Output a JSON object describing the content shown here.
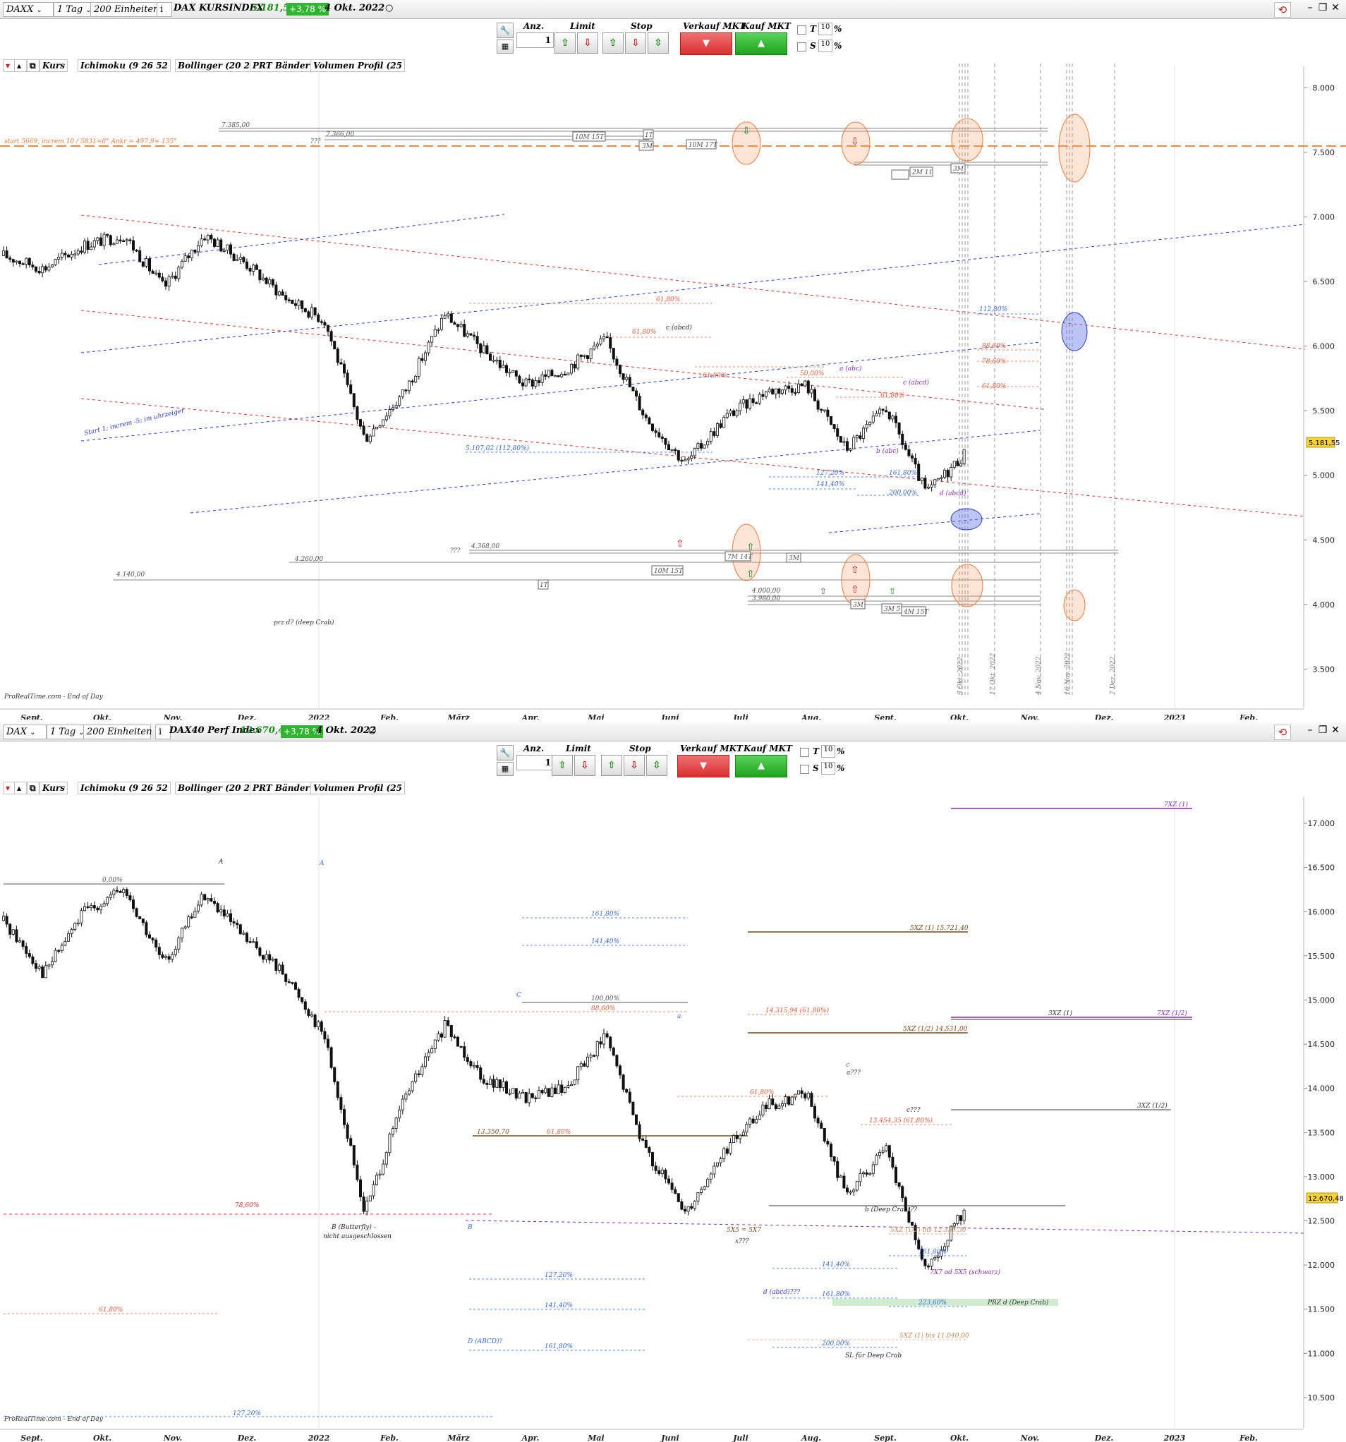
{
  "top": {
    "toolbar": {
      "symbol": "DAXX",
      "interval": "1 Tag",
      "units": "200 Einheiten",
      "name": "DAX KURSINDEX",
      "last": "5.181,55",
      "change": "+3,78 %",
      "date": "4 Okt. 2022"
    },
    "order": {
      "anz_label": "Anz.",
      "anz_value": "1",
      "limit_label": "Limit",
      "stop_label": "Stop",
      "sell_label": "Verkauf MKT",
      "buy_label": "Kauf MKT",
      "t_label": "T",
      "t_value": "10",
      "s_label": "S",
      "s_value": "10",
      "pct": "%"
    },
    "indicators": [
      "Kurs",
      "Ichimoku (9 26 52",
      "Bollinger (20 2",
      "PRT Bänder",
      "Volumen Profil (25"
    ],
    "watermark": "ProRealTime.com - End of Day",
    "price_tag": "5.181,55",
    "texts": {
      "start_line": "start 5669, increm 10 / 5831=0° Ankr = 497.9= 135°",
      "channel_label": "Start 1; increm -5; im uhrzeiger",
      "prz": "prz d? (deep Crab)",
      "l7385": "7.385,00",
      "l7366": "7.366,00",
      "l4260": "4.260,00",
      "l4140": "4.140,00",
      "l4368": "4.368,00",
      "l4000": "4.000,00",
      "l3980": "3.980,00",
      "q1": "???",
      "q2": "???",
      "fib_5107": "5.107,02 (112,80%)",
      "fib_11280": "112,80%",
      "fib_8860": "88,60%",
      "fib_7860": "78,60%",
      "fib_6180a": "61,80%",
      "fib_6180b": "61,80%",
      "fib_6180c": "61,80%",
      "fib_6180d": "61,80%",
      "fib_6180e": "61,80%",
      "fib_5000": "50,00%",
      "fib_12720": "127,20%",
      "fib_14140": "141,40%",
      "fib_16180": "161,80%",
      "fib_20000": "200,00%",
      "lbl_c1": "c (abcd)",
      "lbl_c2": "c (abcd)",
      "lbl_a": "a (abc)",
      "lbl_b": "b (abc)",
      "lbl_d": "d (abcd)",
      "box_10M15T": "10M 15T",
      "box_10M17T": "10M 17T",
      "box_1T": "1T",
      "box_3M": "3M",
      "box_2M11": "2M 11",
      "box_3M1": "3M",
      "box_7M14T": "7M 14T",
      "box_3M2": "3M",
      "box_10M15T2": "10M 15T",
      "box_1T2": "1T",
      "box_3M3": "3M",
      "box_3M5": "3M 5",
      "box_4M15T": "4M 15T",
      "vdates": [
        "3 Okt. 2022",
        "17 Okt. 2022",
        "4 Nov. 2022",
        "16 Nov. 2022",
        "7 Dez. 2022"
      ]
    }
  },
  "bottom": {
    "toolbar": {
      "symbol": "DAX",
      "interval": "1 Tag",
      "units": "200 Einheiten",
      "name": "DAX40 Perf Index",
      "last": "12.670,48",
      "change": "+3,78 %",
      "date": "4 Okt. 2022"
    },
    "order": {
      "anz_label": "Anz.",
      "anz_value": "1",
      "limit_label": "Limit",
      "stop_label": "Stop",
      "sell_label": "Verkauf MKT",
      "buy_label": "Kauf MKT",
      "t_label": "T",
      "t_value": "10",
      "s_label": "S",
      "s_value": "10",
      "pct": "%"
    },
    "indicators": [
      "Kurs",
      "Ichimoku (9 26 52",
      "Bollinger (20 2",
      "PRT Bänder",
      "Volumen Profil (25"
    ],
    "watermark": "ProRealTime.com - End of Day",
    "price_tag": "12.670,48",
    "texts": {
      "A1": "A",
      "A2": "A",
      "C": "C",
      "B": "B",
      "a_small": "a",
      "c_small": "c",
      "a3": "a???",
      "c3": "c???",
      "x3": "x???",
      "p0000": "0,00%",
      "p16180": "161,80%",
      "p14140": "141,40%",
      "p10000": "100,00%",
      "p8860": "88,60%",
      "p13350": "13.350,70",
      "p6180a": "61,80%",
      "p7860": "78,60%",
      "p6180b": "61,80%",
      "p14315": "14.315,94 (61,80%)",
      "p6180c": "61,80%",
      "p13454": "13.454,35 (61,80%)",
      "p16180b": "161,80%",
      "p12720": "127,20%",
      "p14140b": "141,40%",
      "p16180c": "161,80%",
      "p14140c": "141,40%",
      "p16180d": "161,80%",
      "p22360": "223,60%",
      "p20000": "200,00%",
      "p12720b": "127,20%",
      "butterfly1": "B (Butterfly) -",
      "butterfly2": "nicht ausgeschlossen",
      "abcd": "D (ABCD)?",
      "deepcrab_b": "b (Deep Crab)??",
      "sx5": "5X5 = 5X7",
      "d_abcd": "d (abcd)???",
      "prz": "PRZ d (Deep Crab)",
      "sl": "SL für Deep Crab",
      "sxz1": "5XZ (1) 15.721,40",
      "sxz12": "5XZ (1/2) 14.531,00",
      "sxz_half_low": "5XZ (1/2) bis 12.336,30",
      "sxz_low": "5XZ (1) bis 11.040,00",
      "x7x1": "7XZ (1)",
      "x7x12": "7XZ (1/2)",
      "x3x1": "3XZ (1)",
      "x3x12": "3XZ (1/2)",
      "x7or5": "7X7 od 5X5 (schwarz)"
    }
  },
  "x_labels": [
    "Sept.",
    "Okt.",
    "Nov.",
    "Dez.",
    "2022",
    "Feb.",
    "März",
    "Apr.",
    "Mai",
    "Juni",
    "Juli",
    "Aug.",
    "Sept.",
    "Okt.",
    "Nov.",
    "Dez.",
    "2023",
    "Feb."
  ],
  "chart_data": [
    {
      "type": "candlestick",
      "title": "DAX KURSINDEX",
      "y_ticks": [
        "8.000",
        "7.500",
        "7.000",
        "6.500",
        "6.000",
        "5.500",
        "5.000",
        "4.500",
        "4.000",
        "3.500"
      ],
      "ylim": [
        3300,
        8100
      ],
      "x_range": [
        "Aug. 2021",
        "Feb. 2023"
      ],
      "close_path": [
        [
          "Sept. 2021",
          6700
        ],
        [
          "Okt. 2021",
          6600
        ],
        [
          "Nov. 2021",
          6780
        ],
        [
          "Nov. 2021 end",
          6860
        ],
        [
          "Dez. 2021",
          6450
        ],
        [
          "2022",
          6860
        ],
        [
          "Jan. 2022",
          6650
        ],
        [
          "Feb. 2022",
          6380
        ],
        [
          "Feb. 2022 end",
          6200
        ],
        [
          "März 2022",
          5280
        ],
        [
          "März 2022 mid",
          5650
        ],
        [
          "Apr. 2022",
          6250
        ],
        [
          "Apr. 2022 mid",
          5950
        ],
        [
          "Mai 2022",
          5700
        ],
        [
          "Mai 2022 mid",
          5820
        ],
        [
          "Juni 2022",
          6050
        ],
        [
          "Juni 2022 mid",
          5450
        ],
        [
          "Juli 2022",
          5090
        ],
        [
          "Juli 2022 mid",
          5450
        ],
        [
          "Aug. 2022",
          5650
        ],
        [
          "Aug. 2022 mid",
          5700
        ],
        [
          "Sept. 2022",
          5200
        ],
        [
          "Sept. 2022 mid",
          5520
        ],
        [
          "Sept. 2022 end",
          4860
        ],
        [
          "Okt. 2022",
          5181.55
        ]
      ],
      "last_price": 5181.55
    },
    {
      "type": "candlestick",
      "title": "DAX40 Perf Index",
      "y_ticks": [
        "17.000",
        "16.500",
        "16.000",
        "15.500",
        "15.000",
        "14.500",
        "14.000",
        "13.500",
        "13.000",
        "12.500",
        "12.000",
        "11.500",
        "11.000",
        "10.500"
      ],
      "ylim": [
        10300,
        17200
      ],
      "x_range": [
        "Aug. 2021",
        "Feb. 2023"
      ],
      "close_path": [
        [
          "Sept. 2021",
          15900
        ],
        [
          "Okt. 2021",
          15300
        ],
        [
          "Nov. 2021",
          16000
        ],
        [
          "Nov. 2021 end",
          16250
        ],
        [
          "Dez. 2021",
          15400
        ],
        [
          "2022",
          16200
        ],
        [
          "Jan. 2022",
          15700
        ],
        [
          "Feb. 2022",
          15300
        ],
        [
          "Feb. 2022 end",
          14600
        ],
        [
          "März 2022",
          12600
        ],
        [
          "März 2022 mid",
          13900
        ],
        [
          "Apr. 2022",
          14700
        ],
        [
          "Apr. 2022 mid",
          14100
        ],
        [
          "Mai 2022",
          13900
        ],
        [
          "Mai 2022 mid",
          14000
        ],
        [
          "Juni 2022",
          14600
        ],
        [
          "Juni 2022 mid",
          13300
        ],
        [
          "Juli 2022",
          12600
        ],
        [
          "Juli 2022 mid",
          13300
        ],
        [
          "Aug. 2022",
          13800
        ],
        [
          "Aug. 2022 mid",
          13950
        ],
        [
          "Sept. 2022",
          12800
        ],
        [
          "Sept. 2022 mid",
          13300
        ],
        [
          "Sept. 2022 end",
          11900
        ],
        [
          "Okt. 2022",
          12670.48
        ]
      ],
      "last_price": 12670.48
    }
  ]
}
